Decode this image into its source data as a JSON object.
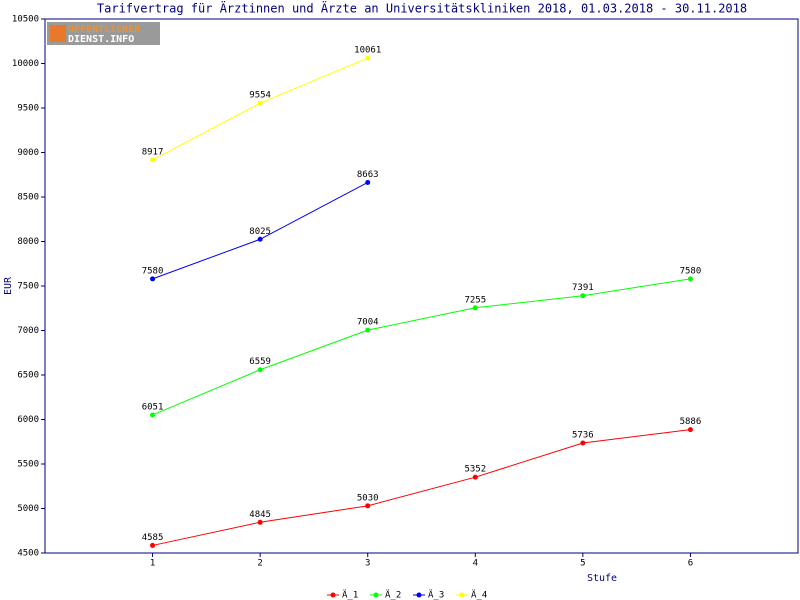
{
  "logo": {
    "line1": "ÖFFENTLICHER",
    "line2": "DIENST.INFO"
  },
  "chart_data": {
    "type": "line",
    "title": "Tarifvertrag für Ärztinnen und Ärzte an Universitätskliniken 2018, 01.03.2018 - 30.11.2018",
    "xlabel": "Stufe",
    "ylabel": "EUR",
    "x": [
      1,
      2,
      3,
      4,
      5,
      6
    ],
    "series": [
      {
        "name": "Ä_1",
        "color": "#ff0000",
        "values": [
          4585,
          4845,
          5030,
          5352,
          5736,
          5886
        ]
      },
      {
        "name": "Ä_2",
        "color": "#00ff00",
        "values": [
          6051,
          6559,
          7004,
          7255,
          7391,
          7580
        ]
      },
      {
        "name": "Ä_3",
        "color": "#0000ff",
        "values": [
          7580,
          8025,
          8663,
          null,
          null,
          null
        ]
      },
      {
        "name": "Ä_4",
        "color": "#ffff00",
        "values": [
          8917,
          9554,
          10061,
          null,
          null,
          null
        ]
      }
    ],
    "xlim": [
      0,
      7
    ],
    "xticks": [
      1,
      2,
      3,
      4,
      5,
      6
    ],
    "ylim": [
      4500,
      10500
    ],
    "yticks": [
      4500,
      5000,
      5500,
      6000,
      6500,
      7000,
      7500,
      8000,
      8500,
      9000,
      9500,
      10000,
      10500
    ],
    "legend": "bottom"
  }
}
